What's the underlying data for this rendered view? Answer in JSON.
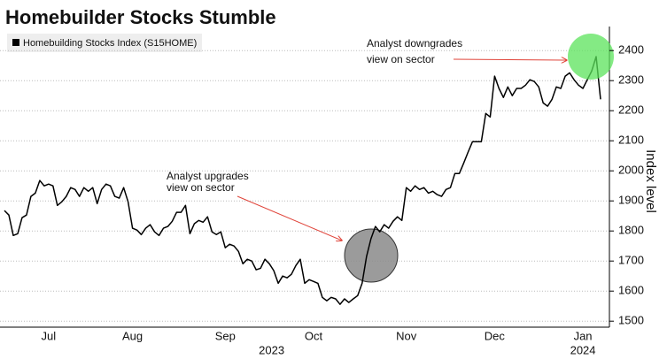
{
  "chart_data": {
    "type": "line",
    "title": "Homebuilder Stocks Stumble",
    "y_label": "Index level",
    "series": [
      {
        "name": "Homebuilding Stocks Index (S15HOME)",
        "color": "#000000",
        "values": [
          1868,
          1853,
          1785,
          1791,
          1844,
          1853,
          1915,
          1926,
          1968,
          1950,
          1956,
          1950,
          1885,
          1897,
          1915,
          1944,
          1938,
          1915,
          1944,
          1932,
          1944,
          1891,
          1938,
          1956,
          1950,
          1915,
          1909,
          1944,
          1897,
          1809,
          1803,
          1788,
          1809,
          1821,
          1797,
          1785,
          1809,
          1815,
          1832,
          1862,
          1862,
          1885,
          1791,
          1824,
          1835,
          1829,
          1847,
          1797,
          1788,
          1797,
          1744,
          1756,
          1750,
          1732,
          1691,
          1706,
          1700,
          1671,
          1676,
          1706,
          1691,
          1668,
          1626,
          1650,
          1644,
          1656,
          1685,
          1706,
          1626,
          1638,
          1632,
          1626,
          1579,
          1568,
          1579,
          1574,
          1556,
          1574,
          1562,
          1574,
          1585,
          1626,
          1715,
          1774,
          1815,
          1797,
          1821,
          1809,
          1832,
          1847,
          1835,
          1944,
          1932,
          1950,
          1938,
          1944,
          1926,
          1932,
          1921,
          1915,
          1938,
          1944,
          1991,
          1991,
          2026,
          2062,
          2097,
          2097,
          2097,
          2191,
          2179,
          2315,
          2274,
          2244,
          2279,
          2250,
          2274,
          2274,
          2285,
          2303,
          2297,
          2279,
          2226,
          2215,
          2238,
          2279,
          2274,
          2315,
          2326,
          2303,
          2285,
          2274,
          2303,
          2332,
          2380,
          2238
        ]
      }
    ],
    "categories": [
      null,
      null,
      null,
      null,
      null,
      null,
      null,
      null,
      null,
      null,
      "Jul",
      null,
      null,
      null,
      null,
      null,
      null,
      null,
      null,
      null,
      null,
      null,
      null,
      null,
      null,
      null,
      null,
      null,
      null,
      "Aug",
      null,
      null,
      null,
      null,
      null,
      null,
      null,
      null,
      null,
      null,
      null,
      null,
      null,
      null,
      null,
      null,
      null,
      null,
      null,
      null,
      "Sep",
      null,
      null,
      null,
      null,
      null,
      null,
      null,
      null,
      null,
      null,
      null,
      null,
      null,
      null,
      null,
      null,
      null,
      null,
      null,
      "Oct",
      null,
      null,
      null,
      null,
      null,
      null,
      null,
      null,
      null,
      null,
      null,
      null,
      null,
      null,
      null,
      null,
      null,
      null,
      null,
      null,
      "Nov",
      null,
      null,
      null,
      null,
      null,
      null,
      null,
      null,
      null,
      null,
      null,
      null,
      null,
      null,
      null,
      null,
      null,
      null,
      null,
      "Dec",
      null,
      null,
      null,
      null,
      null,
      null,
      null,
      null,
      null,
      null,
      null,
      null,
      null,
      null,
      null,
      null,
      null,
      null,
      null,
      "Jan",
      null,
      null,
      null,
      null
    ],
    "x_groups": [
      {
        "label": "2023",
        "count": 6
      },
      {
        "label": "2024",
        "count": 1
      }
    ],
    "ylim": [
      1480,
      2480
    ],
    "yticks": [
      1500,
      1600,
      1700,
      1800,
      1900,
      2000,
      2100,
      2200,
      2300,
      2400
    ],
    "grid": true,
    "annotations": [
      {
        "lines": [
          "Analyst upgrades",
          "view on sector"
        ]
      },
      {
        "lines": [
          "Analyst downgrades",
          "view on sector"
        ]
      }
    ]
  }
}
